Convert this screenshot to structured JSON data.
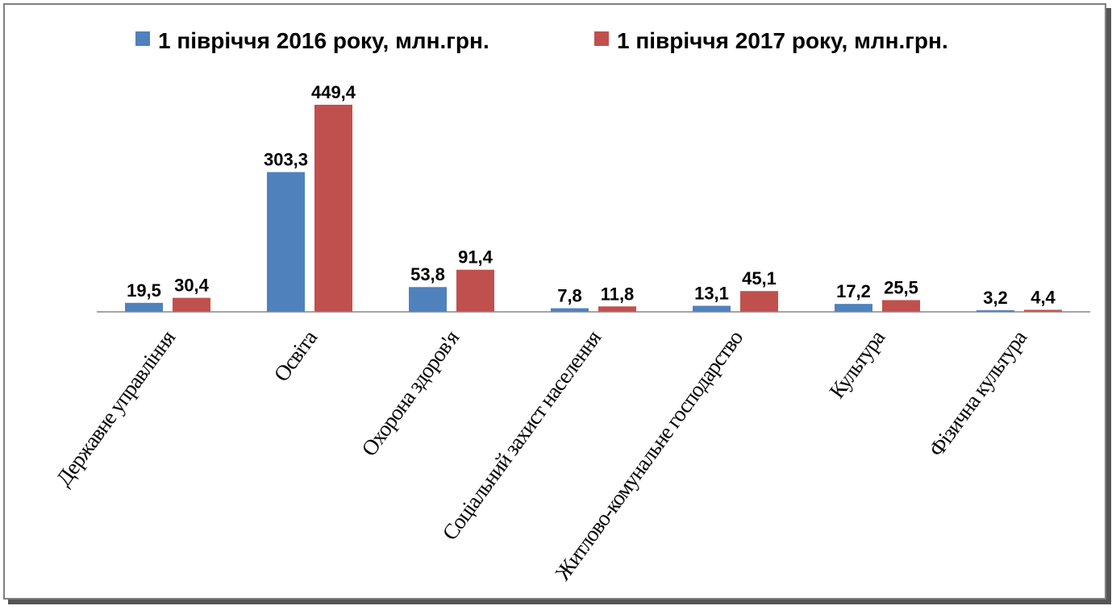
{
  "chart_data": {
    "type": "bar",
    "categories": [
      "Державне управління",
      "Освіта",
      "Охорона здоров'я",
      "Соціальний захист населення",
      "Житлово-комунальне господарство",
      "Культура",
      "Фізична культура"
    ],
    "series": [
      {
        "name": "1 півріччя 2016 року, млн.грн.",
        "color": "#4f81bd",
        "values": [
          19.5,
          303.3,
          53.8,
          7.8,
          13.1,
          17.2,
          3.2
        ],
        "labels": [
          "19,5",
          "303,3",
          "53,8",
          "7,8",
          "13,1",
          "17,2",
          "3,2"
        ]
      },
      {
        "name": "1 півріччя 2017 року, млн.грн.",
        "color": "#c0504d",
        "values": [
          30.4,
          449.4,
          91.4,
          11.8,
          45.1,
          25.5,
          4.4
        ],
        "labels": [
          "30,4",
          "449,4",
          "91,4",
          "11,8",
          "45,1",
          "25,5",
          "4,4"
        ]
      }
    ],
    "legend_position": "top",
    "grid": false
  }
}
